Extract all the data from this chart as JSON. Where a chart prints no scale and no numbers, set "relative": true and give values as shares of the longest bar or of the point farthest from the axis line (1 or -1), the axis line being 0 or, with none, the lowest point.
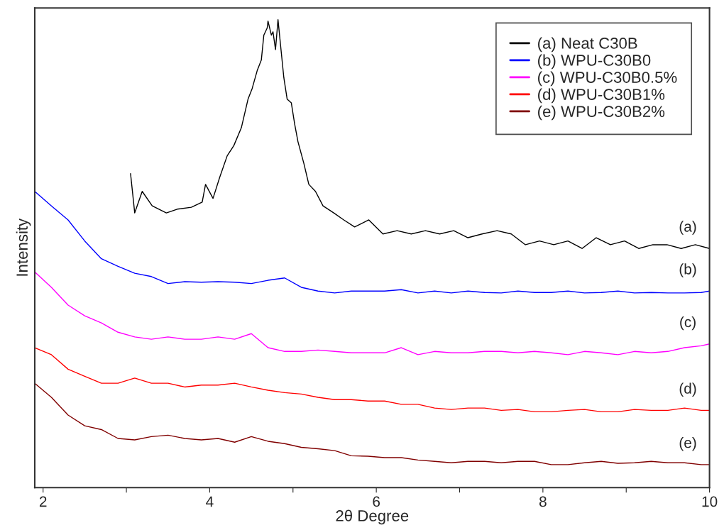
{
  "chart_data": {
    "type": "line",
    "relative": true,
    "xlabel": "2θ Degree",
    "ylabel": "Intensity",
    "xlim": [
      1.9,
      10
    ],
    "xticks": [
      2,
      {
        "value": 3,
        "label": null
      },
      4,
      {
        "value": 5,
        "label": null
      },
      6,
      {
        "value": 7,
        "label": null
      },
      8,
      {
        "value": 9,
        "label": null
      },
      10
    ],
    "tick_labels": "x",
    "grid": false,
    "legend": "top right",
    "marker": "none",
    "line_style": "solid",
    "x": [
      1.9,
      2.1,
      2.3,
      2.5,
      2.7,
      2.9,
      3.1,
      3.3,
      3.5,
      3.7,
      3.9,
      4.1,
      4.3,
      4.5,
      4.7,
      4.9,
      5.1,
      5.3,
      5.5,
      5.7,
      5.9,
      6.1,
      6.3,
      6.5,
      6.7,
      6.9,
      7.1,
      7.3,
      7.5,
      7.7,
      7.9,
      8.1,
      8.3,
      8.5,
      8.7,
      8.9,
      9.1,
      9.3,
      9.5,
      9.7,
      9.9,
      10.0
    ],
    "series": [
      {
        "name": "(a) Neat C30B",
        "color": "#000000",
        "x": [
          3.05,
          3.1,
          3.19,
          3.31,
          3.48,
          3.61,
          3.78,
          3.91,
          3.95,
          4.04,
          4.12,
          4.21,
          4.29,
          4.38,
          4.46,
          4.51,
          4.57,
          4.62,
          4.65,
          4.69,
          4.7,
          4.74,
          4.76,
          4.79,
          4.82,
          4.86,
          4.89,
          4.93,
          4.98,
          5.02,
          5.06,
          5.13,
          5.19,
          5.27,
          5.36,
          5.49,
          5.61,
          5.74,
          5.91,
          6.08,
          6.25,
          6.42,
          6.59,
          6.76,
          6.93,
          7.1,
          7.27,
          7.45,
          7.62,
          7.79,
          7.96,
          8.13,
          8.3,
          8.47,
          8.64,
          8.81,
          8.98,
          9.15,
          9.32,
          9.49,
          9.66,
          9.83,
          10.0
        ],
        "values": [
          0.671,
          0.587,
          0.633,
          0.602,
          0.587,
          0.595,
          0.599,
          0.61,
          0.648,
          0.618,
          0.663,
          0.709,
          0.731,
          0.769,
          0.83,
          0.853,
          0.891,
          0.914,
          0.967,
          0.982,
          0.997,
          0.967,
          0.974,
          0.936,
          1.0,
          0.929,
          0.876,
          0.83,
          0.822,
          0.777,
          0.739,
          0.693,
          0.648,
          0.633,
          0.602,
          0.587,
          0.572,
          0.557,
          0.572,
          0.542,
          0.549,
          0.542,
          0.549,
          0.542,
          0.549,
          0.534,
          0.542,
          0.549,
          0.542,
          0.519,
          0.527,
          0.519,
          0.527,
          0.511,
          0.534,
          0.519,
          0.527,
          0.511,
          0.519,
          0.519,
          0.511,
          0.519,
          0.511
        ]
      },
      {
        "name": "(b) WPU-C30B0",
        "color": "#0000ff",
        "values": [
          0.633,
          0.602,
          0.572,
          0.527,
          0.489,
          0.473,
          0.458,
          0.451,
          0.436,
          0.44,
          0.439,
          0.44,
          0.439,
          0.436,
          0.443,
          0.448,
          0.428,
          0.42,
          0.416,
          0.42,
          0.42,
          0.42,
          0.423,
          0.416,
          0.42,
          0.416,
          0.42,
          0.417,
          0.416,
          0.42,
          0.417,
          0.417,
          0.42,
          0.416,
          0.417,
          0.42,
          0.416,
          0.417,
          0.416,
          0.416,
          0.417,
          0.42
        ]
      },
      {
        "name": "(c) WPU-C30B0.5%",
        "color": "#ff00ff",
        "values": [
          0.461,
          0.428,
          0.39,
          0.367,
          0.352,
          0.332,
          0.322,
          0.317,
          0.322,
          0.317,
          0.317,
          0.322,
          0.317,
          0.329,
          0.299,
          0.291,
          0.291,
          0.294,
          0.291,
          0.288,
          0.288,
          0.288,
          0.299,
          0.284,
          0.291,
          0.288,
          0.288,
          0.291,
          0.291,
          0.288,
          0.291,
          0.288,
          0.284,
          0.291,
          0.288,
          0.284,
          0.291,
          0.288,
          0.291,
          0.299,
          0.303,
          0.307
        ]
      },
      {
        "name": "(d) WPU-C30B1%",
        "color": "#ff0000",
        "values": [
          0.299,
          0.284,
          0.253,
          0.238,
          0.223,
          0.223,
          0.234,
          0.223,
          0.223,
          0.215,
          0.219,
          0.219,
          0.223,
          0.215,
          0.208,
          0.203,
          0.2,
          0.193,
          0.188,
          0.188,
          0.185,
          0.185,
          0.178,
          0.178,
          0.17,
          0.167,
          0.17,
          0.17,
          0.165,
          0.167,
          0.162,
          0.162,
          0.165,
          0.167,
          0.162,
          0.162,
          0.167,
          0.165,
          0.165,
          0.17,
          0.165,
          0.165
        ]
      },
      {
        "name": "(e) WPU-C30B2%",
        "color": "#800000",
        "values": [
          0.223,
          0.193,
          0.155,
          0.132,
          0.124,
          0.105,
          0.102,
          0.109,
          0.112,
          0.105,
          0.102,
          0.105,
          0.097,
          0.109,
          0.099,
          0.094,
          0.086,
          0.083,
          0.079,
          0.068,
          0.067,
          0.064,
          0.064,
          0.059,
          0.056,
          0.053,
          0.056,
          0.056,
          0.053,
          0.056,
          0.056,
          0.049,
          0.049,
          0.053,
          0.056,
          0.052,
          0.053,
          0.056,
          0.053,
          0.053,
          0.049,
          0.049
        ]
      }
    ],
    "annotations": [
      "(a)",
      "(b)",
      "(c)",
      "(d)",
      "(e)"
    ]
  }
}
